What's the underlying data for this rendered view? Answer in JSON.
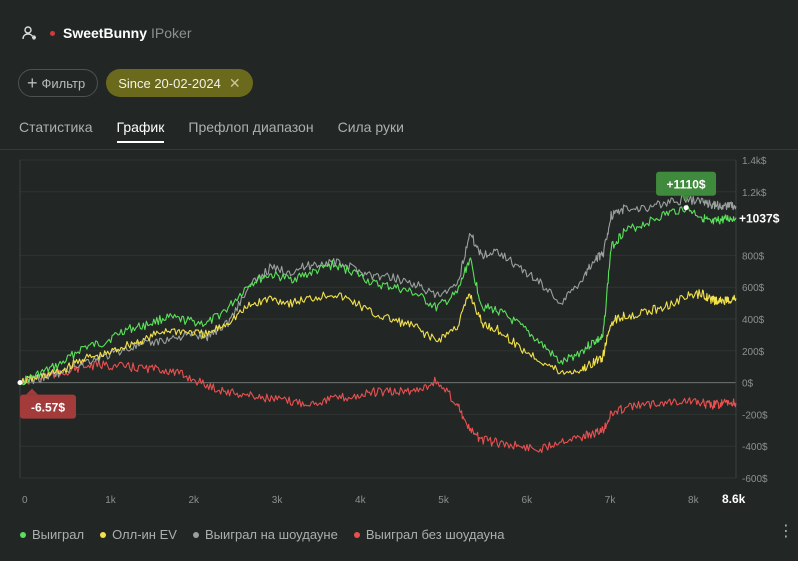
{
  "header": {
    "username": "SweetBunny",
    "room": "IPoker",
    "user_icon": "user-settings-icon",
    "status_color": "#d23a3a"
  },
  "filters": {
    "filter_label": "Фильтр",
    "date_chip_label": "Since 20-02-2024"
  },
  "tabs": [
    {
      "label": "Статистика",
      "active": false
    },
    {
      "label": "График",
      "active": true
    },
    {
      "label": "Префлоп диапазон",
      "active": false
    },
    {
      "label": "Сила руки",
      "active": false
    }
  ],
  "chart_data": {
    "type": "line",
    "x_unit": "hands",
    "xlim": [
      0,
      8600
    ],
    "ylim": [
      -600,
      1400
    ],
    "x_ticks": [
      {
        "value": 0,
        "label": "0"
      },
      {
        "value": 1000,
        "label": "1k"
      },
      {
        "value": 2000,
        "label": "2k"
      },
      {
        "value": 3000,
        "label": "3k"
      },
      {
        "value": 4000,
        "label": "4k"
      },
      {
        "value": 5000,
        "label": "5k"
      },
      {
        "value": 6000,
        "label": "6k"
      },
      {
        "value": 7000,
        "label": "7k"
      },
      {
        "value": 8000,
        "label": "8k"
      },
      {
        "value": 8600,
        "label": "8.6k"
      }
    ],
    "y_ticks": [
      {
        "value": 1400,
        "label": "1.4k$"
      },
      {
        "value": 1200,
        "label": "1.2k$"
      },
      {
        "value": 800,
        "label": "800$"
      },
      {
        "value": 600,
        "label": "600$"
      },
      {
        "value": 400,
        "label": "400$"
      },
      {
        "value": 200,
        "label": "200$"
      },
      {
        "value": 0,
        "label": "0$"
      },
      {
        "value": -200,
        "label": "-200$"
      },
      {
        "value": -400,
        "label": "-400$"
      },
      {
        "value": -600,
        "label": "-600$"
      }
    ],
    "x": [
      0,
      250,
      500,
      750,
      1000,
      1250,
      1500,
      1750,
      2000,
      2250,
      2500,
      2750,
      3000,
      3250,
      3500,
      3750,
      4000,
      4250,
      4500,
      4750,
      5000,
      5250,
      5400,
      5550,
      5750,
      6000,
      6250,
      6500,
      6750,
      6900,
      7000,
      7100,
      7250,
      7500,
      7750,
      8000,
      8200,
      8300,
      8400,
      8500,
      8600
    ],
    "series": [
      {
        "name": "Выиграл",
        "color": "#5be05b",
        "values": [
          0,
          60,
          120,
          220,
          250,
          330,
          360,
          410,
          390,
          370,
          470,
          620,
          680,
          650,
          690,
          740,
          700,
          620,
          600,
          560,
          470,
          560,
          780,
          480,
          450,
          360,
          250,
          120,
          200,
          260,
          280,
          850,
          950,
          1000,
          1060,
          1100,
          1040,
          1000,
          1020,
          1030,
          1037
        ]
      },
      {
        "name": "Олл-ин EV",
        "color": "#f2e14a",
        "values": [
          0,
          40,
          70,
          150,
          170,
          230,
          270,
          330,
          320,
          300,
          380,
          480,
          530,
          500,
          530,
          560,
          510,
          430,
          390,
          350,
          260,
          350,
          560,
          370,
          330,
          220,
          140,
          60,
          80,
          130,
          160,
          380,
          420,
          440,
          480,
          540,
          560,
          520,
          510,
          520,
          530
        ]
      },
      {
        "name": "Выиграл на шоудауне",
        "color": "#9aa09e",
        "values": [
          0,
          30,
          60,
          130,
          160,
          210,
          240,
          270,
          300,
          290,
          380,
          600,
          720,
          700,
          740,
          760,
          720,
          670,
          660,
          620,
          540,
          600,
          940,
          800,
          830,
          720,
          630,
          500,
          650,
          780,
          800,
          1050,
          1090,
          1100,
          1130,
          1150,
          1140,
          1120,
          1110,
          1115,
          1110
        ]
      },
      {
        "name": "Выиграл без шоудауна",
        "color": "#e85050",
        "values": [
          0,
          30,
          60,
          100,
          110,
          100,
          90,
          80,
          40,
          -20,
          -60,
          -80,
          -100,
          -120,
          -130,
          -100,
          -90,
          -60,
          -60,
          -50,
          10,
          -130,
          -300,
          -360,
          -380,
          -400,
          -420,
          -360,
          -340,
          -320,
          -300,
          -200,
          -160,
          -140,
          -120,
          -110,
          -130,
          -140,
          -135,
          -130,
          -130
        ]
      }
    ],
    "annotations": {
      "max_label": "+1110$",
      "end_label": "+1037$",
      "min_label": "-6.57$"
    }
  }
}
